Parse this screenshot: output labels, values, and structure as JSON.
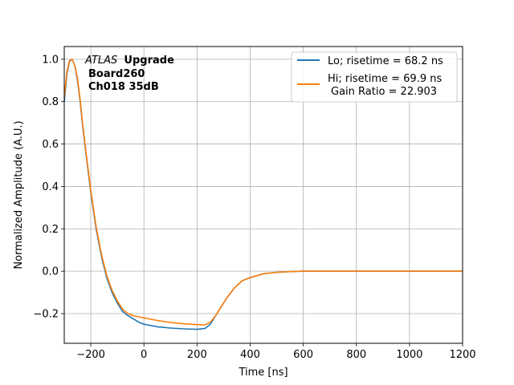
{
  "chart_data": {
    "type": "line",
    "xlabel": "Time [ns]",
    "ylabel": "Normalized Amplitude (A.U.)",
    "xlim": [
      -300,
      1200
    ],
    "ylim": [
      -0.34,
      1.06
    ],
    "xticks": [
      -200,
      0,
      200,
      400,
      600,
      800,
      1000,
      1200
    ],
    "yticks": [
      -0.2,
      0.0,
      0.2,
      0.4,
      0.6,
      0.8,
      1.0
    ],
    "xtick_labels": [
      "−200",
      "0",
      "200",
      "400",
      "600",
      "800",
      "1000",
      "1200"
    ],
    "ytick_labels": [
      "−0.2",
      "0.0",
      "0.2",
      "0.4",
      "0.6",
      "0.8",
      "1.0"
    ],
    "grid": true,
    "legend_position": "top-right",
    "annotation": {
      "italic": "ATLAS",
      "bold": "Upgrade",
      "line2": "Board260",
      "line3": "Ch018 35dB"
    },
    "series": [
      {
        "name": "Lo; risetime = 68.2 ns",
        "color": "#1f77b4",
        "x": [
          -300,
          -290,
          -280,
          -270,
          -260,
          -250,
          -240,
          -230,
          -220,
          -200,
          -180,
          -160,
          -140,
          -120,
          -100,
          -80,
          -60,
          -40,
          -20,
          0,
          50,
          100,
          150,
          200,
          230,
          250,
          270,
          290,
          310,
          340,
          370,
          400,
          450,
          500,
          550,
          600,
          700,
          800,
          900,
          1000,
          1100,
          1200
        ],
        "y": [
          0.8,
          0.93,
          0.99,
          1.0,
          0.97,
          0.9,
          0.8,
          0.68,
          0.57,
          0.37,
          0.2,
          0.07,
          -0.03,
          -0.1,
          -0.15,
          -0.19,
          -0.21,
          -0.225,
          -0.24,
          -0.25,
          -0.262,
          -0.268,
          -0.272,
          -0.274,
          -0.27,
          -0.25,
          -0.21,
          -0.17,
          -0.13,
          -0.08,
          -0.045,
          -0.03,
          -0.012,
          -0.005,
          -0.002,
          0.0,
          0.0,
          0.0,
          0.0,
          0.0,
          0.0,
          0.0
        ]
      },
      {
        "name": "Hi; risetime = 69.9 ns",
        "name_line2": "Gain Ratio = 22.903",
        "color": "#ff7f0e",
        "x": [
          -300,
          -290,
          -280,
          -270,
          -260,
          -250,
          -240,
          -230,
          -220,
          -200,
          -180,
          -160,
          -140,
          -120,
          -100,
          -80,
          -60,
          -40,
          -20,
          0,
          50,
          100,
          150,
          200,
          230,
          250,
          270,
          290,
          310,
          340,
          370,
          400,
          450,
          500,
          550,
          600,
          700,
          800,
          900,
          1000,
          1100,
          1200
        ],
        "y": [
          0.82,
          0.94,
          0.995,
          1.0,
          0.97,
          0.91,
          0.81,
          0.69,
          0.58,
          0.38,
          0.21,
          0.08,
          -0.02,
          -0.09,
          -0.14,
          -0.18,
          -0.2,
          -0.21,
          -0.215,
          -0.22,
          -0.232,
          -0.242,
          -0.248,
          -0.252,
          -0.253,
          -0.24,
          -0.21,
          -0.17,
          -0.13,
          -0.08,
          -0.045,
          -0.03,
          -0.012,
          -0.005,
          -0.002,
          0.0,
          0.0,
          0.0,
          0.0,
          0.0,
          0.0,
          0.0
        ]
      }
    ]
  }
}
